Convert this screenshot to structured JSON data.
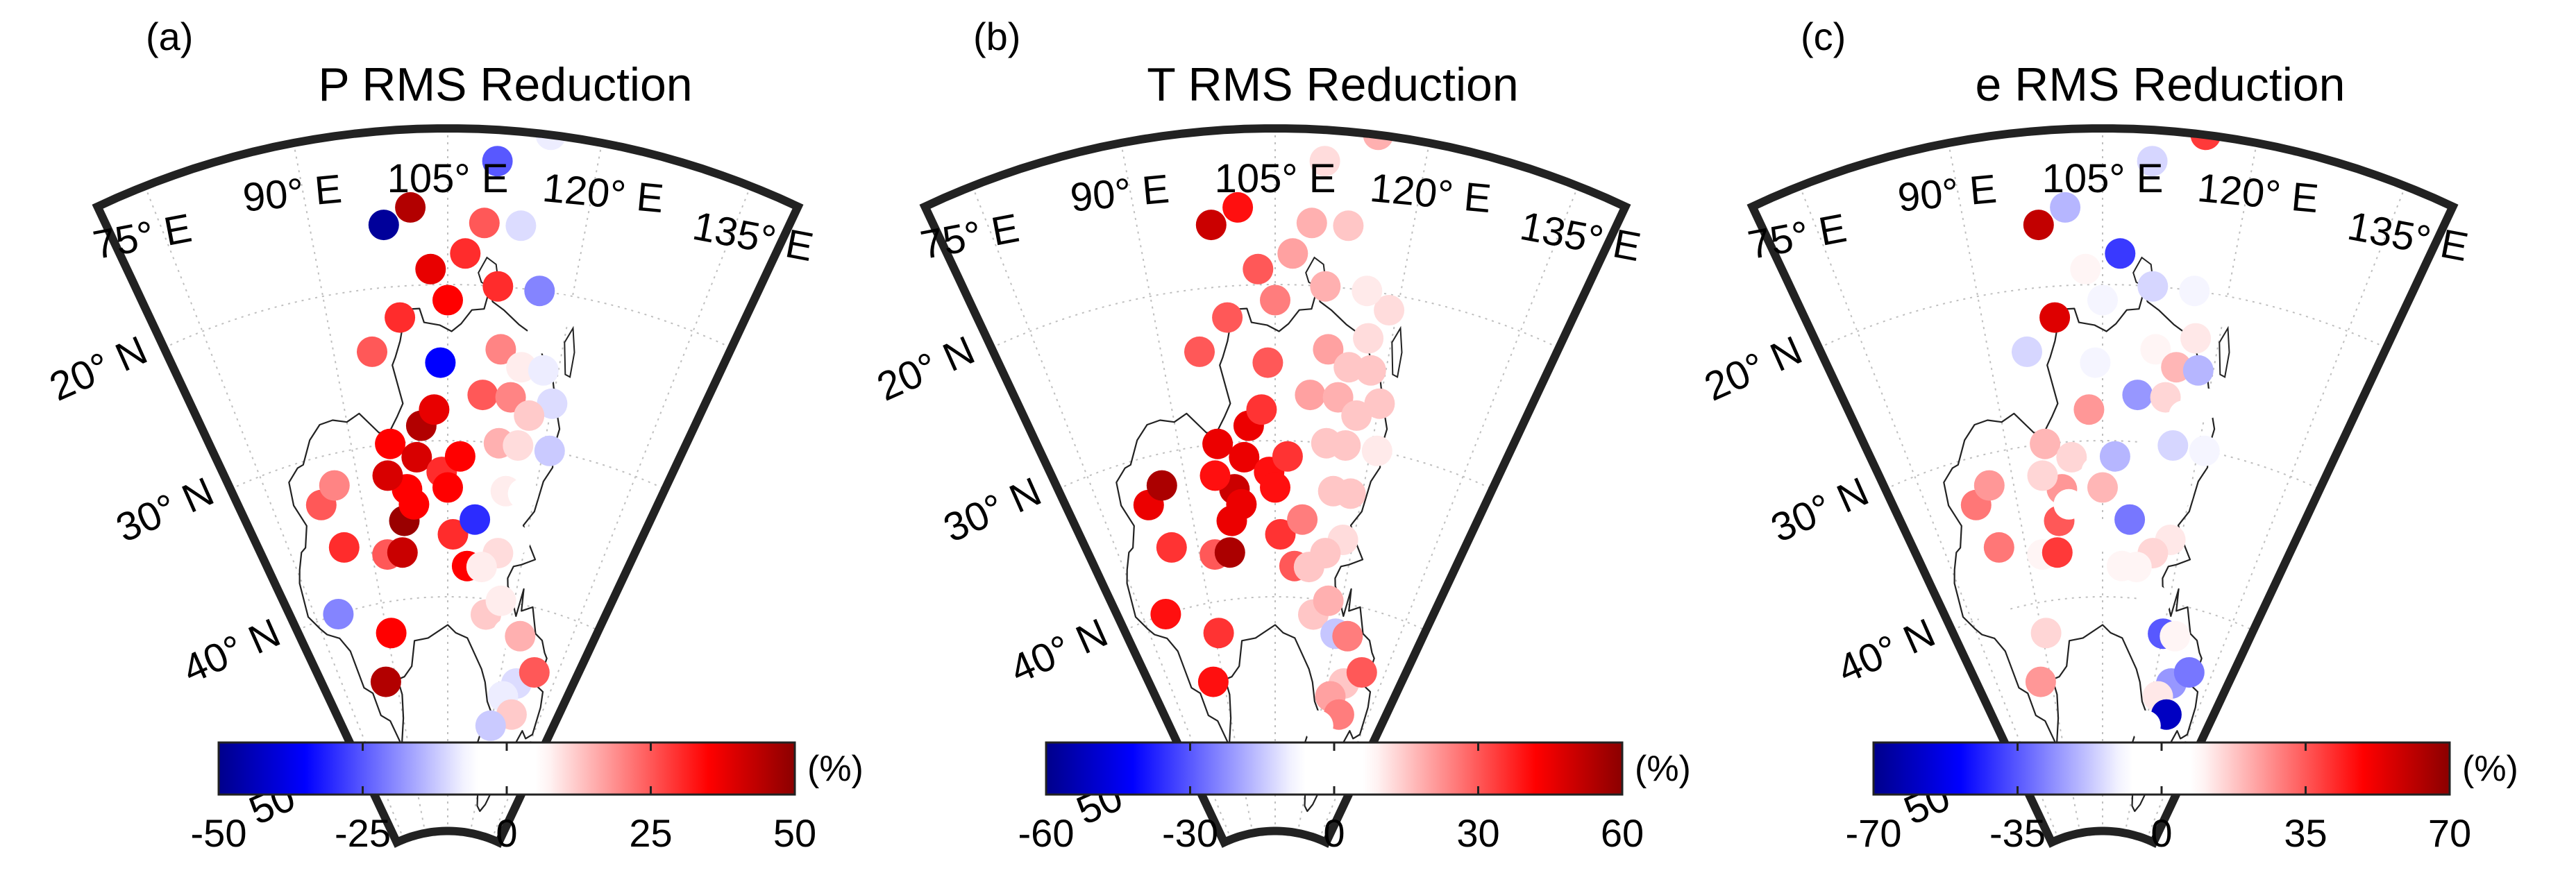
{
  "panels": [
    {
      "letter": "(a)",
      "title": "P RMS Reduction",
      "colorbar": {
        "min": -50,
        "max": 50,
        "ticks": [
          "-50",
          "-25",
          "0",
          "25",
          "50"
        ],
        "unit": "(%)"
      },
      "stations": [
        [
          87,
          45,
          45
        ],
        [
          91,
          42,
          35
        ],
        [
          93,
          37,
          25
        ],
        [
          85,
          36,
          30
        ],
        [
          80,
          40,
          -20
        ],
        [
          83,
          33,
          25
        ],
        [
          86,
          32,
          20
        ],
        [
          96,
          37,
          42
        ],
        [
          97,
          35,
          48
        ],
        [
          98,
          33,
          35
        ],
        [
          95,
          32,
          40
        ],
        [
          96,
          30,
          35
        ],
        [
          99,
          34,
          35
        ],
        [
          100,
          31,
          40
        ],
        [
          101,
          29,
          45
        ],
        [
          104,
          32,
          30
        ],
        [
          103,
          28,
          38
        ],
        [
          105,
          33,
          35
        ],
        [
          107,
          31,
          35
        ],
        [
          106,
          36,
          30
        ],
        [
          109,
          38,
          35
        ],
        [
          110,
          35,
          -30
        ],
        [
          104,
          25,
          -35
        ],
        [
          99,
          22,
          30
        ],
        [
          95,
          24,
          25
        ],
        [
          98,
          16,
          -48
        ],
        [
          101,
          15,
          45
        ],
        [
          103,
          19,
          38
        ],
        [
          105,
          21,
          35
        ],
        [
          107,
          18,
          30
        ],
        [
          109,
          16,
          25
        ],
        [
          111,
          20,
          30
        ],
        [
          112,
          24,
          20
        ],
        [
          110,
          27,
          25
        ],
        [
          114,
          27,
          20
        ],
        [
          113,
          30,
          15
        ],
        [
          116,
          30,
          10
        ],
        [
          115,
          25,
          8
        ],
        [
          117,
          23,
          5
        ],
        [
          119,
          21,
          -5
        ],
        [
          118,
          25,
          -8
        ],
        [
          120,
          27,
          -10
        ],
        [
          121,
          30,
          -12
        ],
        [
          117,
          28,
          12
        ],
        [
          115,
          33,
          8
        ],
        [
          118,
          33,
          5
        ],
        [
          118,
          36,
          3
        ],
        [
          115,
          37,
          10
        ],
        [
          112,
          38,
          8
        ],
        [
          114,
          41,
          12
        ],
        [
          117,
          40,
          8
        ],
        [
          120,
          42,
          5
        ],
        [
          123,
          42,
          15
        ],
        [
          125,
          45,
          -10
        ],
        [
          122,
          46,
          -8
        ],
        [
          126,
          47,
          12
        ],
        [
          129,
          44,
          25
        ],
        [
          120,
          48,
          -12
        ],
        [
          116,
          20,
          -20
        ],
        [
          110,
          12,
          -25
        ],
        [
          115,
          10,
          -8
        ],
        [
          113,
          16,
          -10
        ]
      ]
    },
    {
      "letter": "(b)",
      "title": "T RMS Reduction",
      "colorbar": {
        "min": -60,
        "max": 60,
        "ticks": [
          "-60",
          "-30",
          "0",
          "30",
          "60"
        ],
        "unit": "(%)"
      },
      "stations": [
        [
          87,
          45,
          40
        ],
        [
          91,
          42,
          35
        ],
        [
          93,
          37,
          30
        ],
        [
          85,
          36,
          35
        ],
        [
          80,
          40,
          40
        ],
        [
          83,
          33,
          45
        ],
        [
          86,
          32,
          55
        ],
        [
          96,
          37,
          55
        ],
        [
          97,
          35,
          45
        ],
        [
          98,
          33,
          50
        ],
        [
          95,
          32,
          40
        ],
        [
          96,
          30,
          45
        ],
        [
          99,
          34,
          45
        ],
        [
          100,
          31,
          45
        ],
        [
          101,
          29,
          45
        ],
        [
          104,
          32,
          40
        ],
        [
          103,
          28,
          35
        ],
        [
          105,
          33,
          40
        ],
        [
          107,
          31,
          35
        ],
        [
          106,
          36,
          35
        ],
        [
          109,
          38,
          30
        ],
        [
          110,
          35,
          25
        ],
        [
          104,
          25,
          30
        ],
        [
          99,
          22,
          30
        ],
        [
          95,
          24,
          30
        ],
        [
          98,
          16,
          50
        ],
        [
          101,
          15,
          40
        ],
        [
          103,
          19,
          30
        ],
        [
          105,
          21,
          25
        ],
        [
          107,
          18,
          20
        ],
        [
          109,
          16,
          18
        ],
        [
          111,
          20,
          18
        ],
        [
          112,
          24,
          20
        ],
        [
          110,
          27,
          20
        ],
        [
          114,
          27,
          18
        ],
        [
          113,
          30,
          15
        ],
        [
          116,
          30,
          15
        ],
        [
          115,
          25,
          15
        ],
        [
          117,
          23,
          12
        ],
        [
          119,
          21,
          12
        ],
        [
          118,
          25,
          15
        ],
        [
          120,
          27,
          15
        ],
        [
          121,
          30,
          10
        ],
        [
          117,
          28,
          15
        ],
        [
          115,
          33,
          15
        ],
        [
          118,
          33,
          15
        ],
        [
          118,
          36,
          12
        ],
        [
          115,
          37,
          15
        ],
        [
          112,
          38,
          15
        ],
        [
          114,
          41,
          15
        ],
        [
          117,
          40,
          18
        ],
        [
          120,
          42,
          -15
        ],
        [
          123,
          42,
          25
        ],
        [
          125,
          45,
          15
        ],
        [
          122,
          46,
          20
        ],
        [
          126,
          47,
          25
        ],
        [
          129,
          44,
          30
        ],
        [
          120,
          48,
          5
        ],
        [
          116,
          20,
          10
        ],
        [
          110,
          12,
          12
        ],
        [
          115,
          10,
          18
        ],
        [
          113,
          16,
          15
        ]
      ]
    },
    {
      "letter": "(c)",
      "title": "e RMS Reduction",
      "colorbar": {
        "min": -70,
        "max": 70,
        "ticks": [
          "-70",
          "-35",
          "0",
          "35",
          "70"
        ],
        "unit": "(%)"
      },
      "stations": [
        [
          87,
          45,
          25
        ],
        [
          91,
          42,
          15
        ],
        [
          93,
          37,
          10
        ],
        [
          85,
          36,
          30
        ],
        [
          80,
          40,
          8
        ],
        [
          83,
          33,
          30
        ],
        [
          86,
          32,
          25
        ],
        [
          96,
          37,
          40
        ],
        [
          97,
          35,
          35
        ],
        [
          98,
          33,
          25
        ],
        [
          95,
          32,
          15
        ],
        [
          96,
          30,
          20
        ],
        [
          99,
          34,
          8
        ],
        [
          100,
          31,
          15
        ],
        [
          101,
          29,
          -5
        ],
        [
          104,
          32,
          5
        ],
        [
          103,
          28,
          25
        ],
        [
          105,
          33,
          20
        ],
        [
          107,
          31,
          -20
        ],
        [
          106,
          36,
          5
        ],
        [
          109,
          38,
          10
        ],
        [
          110,
          35,
          -30
        ],
        [
          104,
          25,
          -10
        ],
        [
          99,
          22,
          55
        ],
        [
          95,
          24,
          -15
        ],
        [
          98,
          16,
          60
        ],
        [
          101,
          15,
          -20
        ],
        [
          103,
          19,
          10
        ],
        [
          105,
          21,
          -10
        ],
        [
          107,
          18,
          -40
        ],
        [
          109,
          16,
          -8
        ],
        [
          111,
          20,
          -15
        ],
        [
          112,
          24,
          10
        ],
        [
          110,
          27,
          -25
        ],
        [
          114,
          27,
          15
        ],
        [
          113,
          30,
          5
        ],
        [
          116,
          30,
          -15
        ],
        [
          115,
          25,
          20
        ],
        [
          117,
          23,
          12
        ],
        [
          119,
          21,
          -5
        ],
        [
          118,
          25,
          -20
        ],
        [
          120,
          27,
          5
        ],
        [
          121,
          30,
          -10
        ],
        [
          117,
          28,
          8
        ],
        [
          115,
          33,
          -8
        ],
        [
          118,
          33,
          5
        ],
        [
          118,
          36,
          12
        ],
        [
          115,
          37,
          15
        ],
        [
          112,
          38,
          10
        ],
        [
          114,
          41,
          8
        ],
        [
          117,
          40,
          5
        ],
        [
          120,
          42,
          -35
        ],
        [
          123,
          42,
          10
        ],
        [
          125,
          45,
          -25
        ],
        [
          122,
          46,
          12
        ],
        [
          126,
          47,
          -60
        ],
        [
          129,
          44,
          -30
        ],
        [
          120,
          48,
          -5
        ],
        [
          116,
          20,
          -10
        ],
        [
          110,
          12,
          -15
        ],
        [
          115,
          10,
          40
        ],
        [
          113,
          16,
          -8
        ]
      ]
    }
  ],
  "lat_labels": [
    "20° N",
    "30° N",
    "40° N",
    "50° N"
  ],
  "lon_labels": [
    "75° E",
    "90° E",
    "105° E",
    "120° E",
    "135° E"
  ],
  "lat_values": [
    20,
    30,
    40,
    50
  ],
  "lon_values": [
    75,
    90,
    105,
    120,
    135
  ],
  "colormap": {
    "negative": "#0000ff",
    "zero": "#ffffff",
    "positive": "#ff0000",
    "negative_end": "#00008b",
    "positive_end": "#8b0000"
  }
}
